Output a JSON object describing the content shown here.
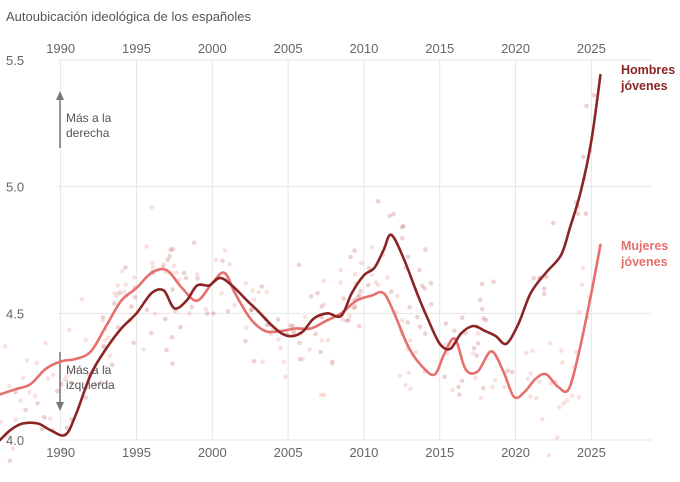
{
  "chart_data": {
    "type": "line",
    "title": "Autoubicación ideológica de los españoles",
    "xlim": [
      1986,
      2029
    ],
    "ylim": [
      4.0,
      5.55
    ],
    "x_ticks": [
      1990,
      1995,
      2000,
      2005,
      2010,
      2015,
      2020,
      2025
    ],
    "y_ticks": [
      4.0,
      4.5,
      5.0,
      5.5
    ],
    "y_tick_labels": [
      "4.0",
      "4.5",
      "5.0",
      "5.5"
    ],
    "annotations": {
      "up": [
        "Más a la",
        "derecha"
      ],
      "down": [
        "Más a la",
        "izquierda"
      ]
    },
    "series": [
      {
        "name": "Hombres jóvenes",
        "label_lines": [
          "Hombres",
          "jóvenes"
        ],
        "color": "#8b2525",
        "x": [
          1986,
          1986.7,
          1987.5,
          1988.5,
          1989.3,
          1990.3,
          1991,
          1992,
          1993,
          1994,
          1995,
          1996,
          1996.8,
          1997.5,
          1998.3,
          1999,
          1999.8,
          2000.5,
          2001.3,
          2002.3,
          2003,
          2003.8,
          2004.6,
          2005.3,
          2006,
          2006.7,
          2007.6,
          2008.5,
          2009.2,
          2010,
          2010.7,
          2011.3,
          2011.8,
          2012.6,
          2013.5,
          2014.2,
          2015,
          2015.7,
          2016.4,
          2017.2,
          2018,
          2018.7,
          2019.4,
          2020.2,
          2021,
          2022,
          2023,
          2023.6,
          2024.3,
          2025,
          2025.6
        ],
        "values": [
          4.0,
          4.04,
          4.065,
          4.065,
          4.04,
          4.02,
          4.1,
          4.26,
          4.36,
          4.44,
          4.5,
          4.58,
          4.59,
          4.52,
          4.55,
          4.61,
          4.61,
          4.64,
          4.61,
          4.55,
          4.51,
          4.46,
          4.42,
          4.41,
          4.43,
          4.48,
          4.5,
          4.49,
          4.58,
          4.65,
          4.68,
          4.75,
          4.81,
          4.72,
          4.58,
          4.48,
          4.38,
          4.36,
          4.42,
          4.45,
          4.43,
          4.41,
          4.38,
          4.46,
          4.58,
          4.66,
          4.73,
          4.84,
          4.98,
          5.18,
          5.44
        ]
      },
      {
        "name": "Mujeres jóvenes",
        "label_lines": [
          "Mujeres",
          "jóvenes"
        ],
        "color": "#e5706d",
        "x": [
          1986,
          1987,
          1988,
          1989,
          1990,
          1991,
          1992,
          1993,
          1994,
          1995,
          1996,
          1997,
          1998,
          1999,
          2000,
          2000.8,
          2001.5,
          2002.5,
          2003.5,
          2004.5,
          2005.5,
          2006.5,
          2007.5,
          2008.5,
          2009.5,
          2010.5,
          2011.3,
          2012,
          2013,
          2014,
          2014.7,
          2015.3,
          2016,
          2016.7,
          2017.5,
          2018.4,
          2019.2,
          2019.9,
          2020.6,
          2021.3,
          2022,
          2022.8,
          2023.5,
          2024.2,
          2025,
          2025.6
        ],
        "values": [
          4.18,
          4.2,
          4.22,
          4.28,
          4.31,
          4.32,
          4.35,
          4.45,
          4.55,
          4.6,
          4.66,
          4.67,
          4.6,
          4.55,
          4.62,
          4.66,
          4.58,
          4.48,
          4.43,
          4.43,
          4.44,
          4.44,
          4.47,
          4.5,
          4.55,
          4.57,
          4.58,
          4.5,
          4.36,
          4.28,
          4.26,
          4.34,
          4.4,
          4.28,
          4.27,
          4.35,
          4.27,
          4.17,
          4.19,
          4.24,
          4.26,
          4.21,
          4.2,
          4.35,
          4.58,
          4.77
        ]
      }
    ]
  }
}
